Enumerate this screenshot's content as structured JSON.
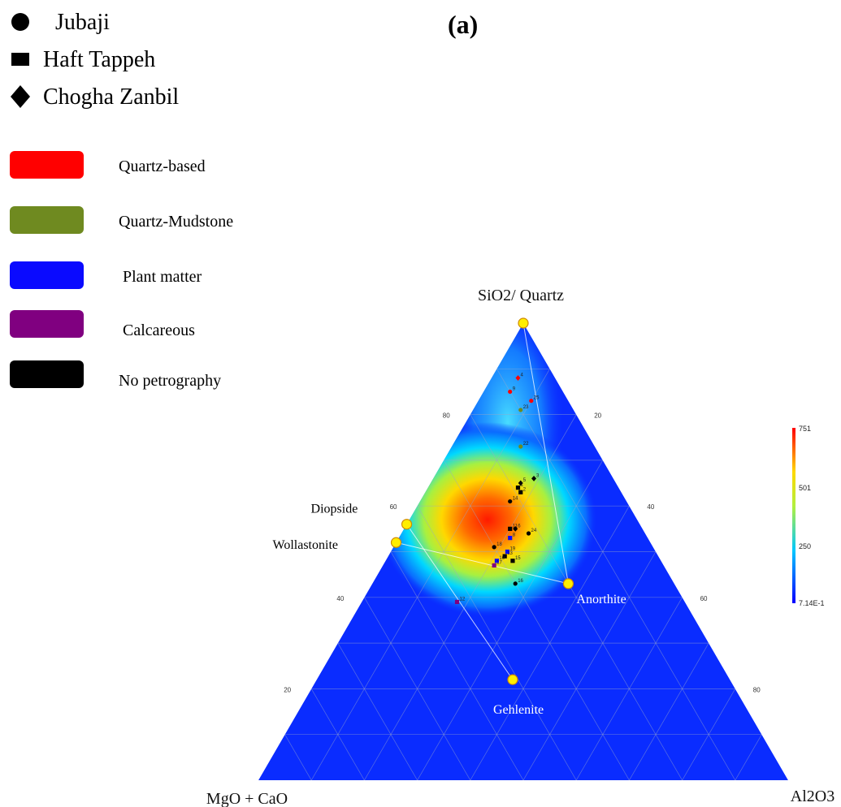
{
  "panel_label": "(a)",
  "shape_legend": [
    {
      "label": "Jubaji",
      "icon": "circle-icon"
    },
    {
      "label": "Haft Tappeh",
      "icon": "square-icon"
    },
    {
      "label": "Chogha Zanbil",
      "icon": "diamond-icon"
    }
  ],
  "color_legend": [
    {
      "label": "Quartz-based",
      "color": "#ff0000"
    },
    {
      "label": "Quartz-Mudstone",
      "color": "#6f8a20"
    },
    {
      "label": "Plant matter",
      "color": "#0a0aff"
    },
    {
      "label": "Calcareous",
      "color": "#800080"
    },
    {
      "label": "No petrography",
      "color": "#000000"
    }
  ],
  "chart_data": {
    "type": "scatter",
    "subtype": "ternary",
    "vertices": {
      "top": "SiO2/ Quartz",
      "left": "MgO + CaO",
      "right": "Al2O3"
    },
    "top_axis_ticks": [
      20,
      40,
      60,
      80
    ],
    "left_axis_ticks": [
      "20",
      "40",
      "60",
      "80"
    ],
    "right_axis_ticks": [
      "20",
      "40",
      "60",
      "80"
    ],
    "grid": true,
    "density_background": true,
    "colorbar": {
      "max": "751",
      "mid": "501",
      "low": "250",
      "min": "7.14E-1",
      "colors": [
        "#0000ff",
        "#00c8ff",
        "#ffff00",
        "#ff0000"
      ]
    },
    "reference_minerals": [
      {
        "name": "SiO2/ Quartz",
        "sio2": 100,
        "mgo_cao": 0,
        "al2o3": 0
      },
      {
        "name": "Diopside",
        "sio2": 56,
        "mgo_cao": 44,
        "al2o3": 0
      },
      {
        "name": "Wollastonite",
        "sio2": 52,
        "mgo_cao": 48,
        "al2o3": 0
      },
      {
        "name": "Anorthite",
        "sio2": 43,
        "mgo_cao": 20,
        "al2o3": 37
      },
      {
        "name": "Gehlenite",
        "sio2": 22,
        "mgo_cao": 41,
        "al2o3": 37
      }
    ],
    "tie_lines": [
      [
        "Wollastonite",
        "Anorthite"
      ],
      [
        "Diopside",
        "Gehlenite"
      ],
      [
        "SiO2/ Quartz",
        "Anorthite"
      ]
    ],
    "samples": [
      {
        "id": "4",
        "site": "Chogha Zanbil",
        "class": "Quartz-based",
        "sio2": 88,
        "mgo_cao": 7,
        "al2o3": 5
      },
      {
        "id": "9",
        "site": "Jubaji",
        "class": "Quartz-based",
        "sio2": 85,
        "mgo_cao": 10,
        "al2o3": 5
      },
      {
        "id": "25",
        "site": "Jubaji",
        "class": "Quartz-based",
        "sio2": 83,
        "mgo_cao": 7,
        "al2o3": 10
      },
      {
        "id": "23",
        "site": "Jubaji",
        "class": "Quartz-Mudstone",
        "sio2": 81,
        "mgo_cao": 10,
        "al2o3": 9
      },
      {
        "id": "22",
        "site": "Jubaji",
        "class": "Quartz-Mudstone",
        "sio2": 73,
        "mgo_cao": 14,
        "al2o3": 13
      },
      {
        "id": "3",
        "site": "Chogha Zanbil",
        "class": "No petrography",
        "sio2": 66,
        "mgo_cao": 15,
        "al2o3": 19
      },
      {
        "id": "5",
        "site": "Chogha Zanbil",
        "class": "No petrography",
        "sio2": 65,
        "mgo_cao": 18,
        "al2o3": 17
      },
      {
        "id": "1",
        "site": "Haft Tappeh",
        "class": "No petrography",
        "sio2": 64,
        "mgo_cao": 19,
        "al2o3": 17
      },
      {
        "id": "2",
        "site": "Haft Tappeh",
        "class": "No petrography",
        "sio2": 63,
        "mgo_cao": 19,
        "al2o3": 18
      },
      {
        "id": "14",
        "site": "Jubaji",
        "class": "No petrography",
        "sio2": 61,
        "mgo_cao": 22,
        "al2o3": 17
      },
      {
        "id": "11",
        "site": "Haft Tappeh",
        "class": "No petrography",
        "sio2": 55,
        "mgo_cao": 25,
        "al2o3": 20
      },
      {
        "id": "6",
        "site": "Chogha Zanbil",
        "class": "No petrography",
        "sio2": 55,
        "mgo_cao": 24,
        "al2o3": 21
      },
      {
        "id": "24",
        "site": "Jubaji",
        "class": "No petrography",
        "sio2": 54,
        "mgo_cao": 22,
        "al2o3": 24
      },
      {
        "id": "8",
        "site": "Haft Tappeh",
        "class": "Plant matter",
        "sio2": 53,
        "mgo_cao": 26,
        "al2o3": 21
      },
      {
        "id": "18",
        "site": "Jubaji",
        "class": "No petrography",
        "sio2": 51,
        "mgo_cao": 30,
        "al2o3": 19
      },
      {
        "id": "19",
        "site": "Haft Tappeh",
        "class": "Plant matter",
        "sio2": 50,
        "mgo_cao": 28,
        "al2o3": 22
      },
      {
        "id": "13",
        "site": "Haft Tappeh",
        "class": "No petrography",
        "sio2": 49,
        "mgo_cao": 29,
        "al2o3": 22
      },
      {
        "id": "15",
        "site": "Haft Tappeh",
        "class": "No petrography",
        "sio2": 48,
        "mgo_cao": 28,
        "al2o3": 24
      },
      {
        "id": "10",
        "site": "Haft Tappeh",
        "class": "Plant matter",
        "sio2": 48,
        "mgo_cao": 31,
        "al2o3": 21
      },
      {
        "id": "17",
        "site": "Haft Tappeh",
        "class": "Calcareous",
        "sio2": 47,
        "mgo_cao": 32,
        "al2o3": 21
      },
      {
        "id": "16",
        "site": "Jubaji",
        "class": "No petrography",
        "sio2": 43,
        "mgo_cao": 30,
        "al2o3": 27
      },
      {
        "id": "12",
        "site": "Haft Tappeh",
        "class": "Calcareous",
        "sio2": 39,
        "mgo_cao": 43,
        "al2o3": 18
      }
    ]
  }
}
